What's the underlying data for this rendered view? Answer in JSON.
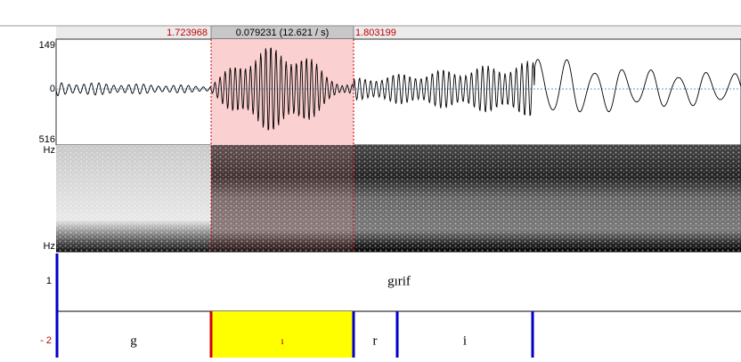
{
  "header": {
    "selection_start": "1.723968",
    "selection_duration": "0.079231 (12.621 / s)",
    "selection_end": "1.803199"
  },
  "waveform": {
    "max_label": "149",
    "zero_label": "0",
    "min_label": "516"
  },
  "spectrogram": {
    "top_label": "Hz",
    "bottom_label": "Hz"
  },
  "tiers": [
    {
      "number": "1",
      "intervals": [
        {
          "label": "gırif"
        }
      ]
    },
    {
      "number": "- 2",
      "intervals": [
        {
          "label": "g"
        },
        {
          "label": "ı"
        },
        {
          "label": "r"
        },
        {
          "label": "i"
        }
      ]
    }
  ]
}
